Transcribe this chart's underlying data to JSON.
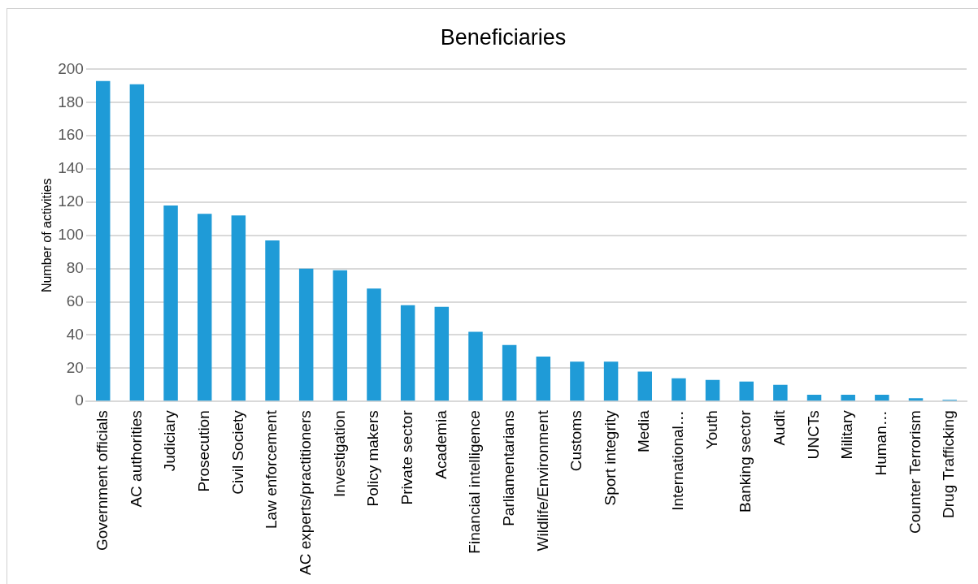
{
  "chart_data": {
    "type": "bar",
    "title": "Beneficiaries",
    "ylabel": "Number of activities",
    "categories": [
      "Government officials",
      "AC authorities",
      "Judiciary",
      "Prosecution",
      "Civil Society",
      "Law enforcement",
      "AC experts/practitioners",
      "Investigation",
      "Policy makers",
      "Private sector",
      "Academia",
      "Financial intelligence",
      "Parliamentarians",
      "Wildlife/Environment",
      "Customs",
      "Sport integrity",
      "Media",
      "International…",
      "Youth",
      "Banking sector",
      "Audit",
      "UNCTs",
      "Military",
      "Human…",
      "Counter Terrorism",
      "Drug Trafficking"
    ],
    "values": [
      193,
      191,
      118,
      113,
      112,
      97,
      80,
      79,
      68,
      58,
      57,
      42,
      34,
      27,
      24,
      24,
      18,
      14,
      13,
      12,
      10,
      4,
      4,
      4,
      2,
      1
    ],
    "color": "#1f9bd7",
    "ylim": [
      0,
      200
    ],
    "yticks": [
      0,
      20,
      40,
      60,
      80,
      100,
      120,
      140,
      160,
      180,
      200
    ],
    "grid": "y",
    "legend": false
  }
}
